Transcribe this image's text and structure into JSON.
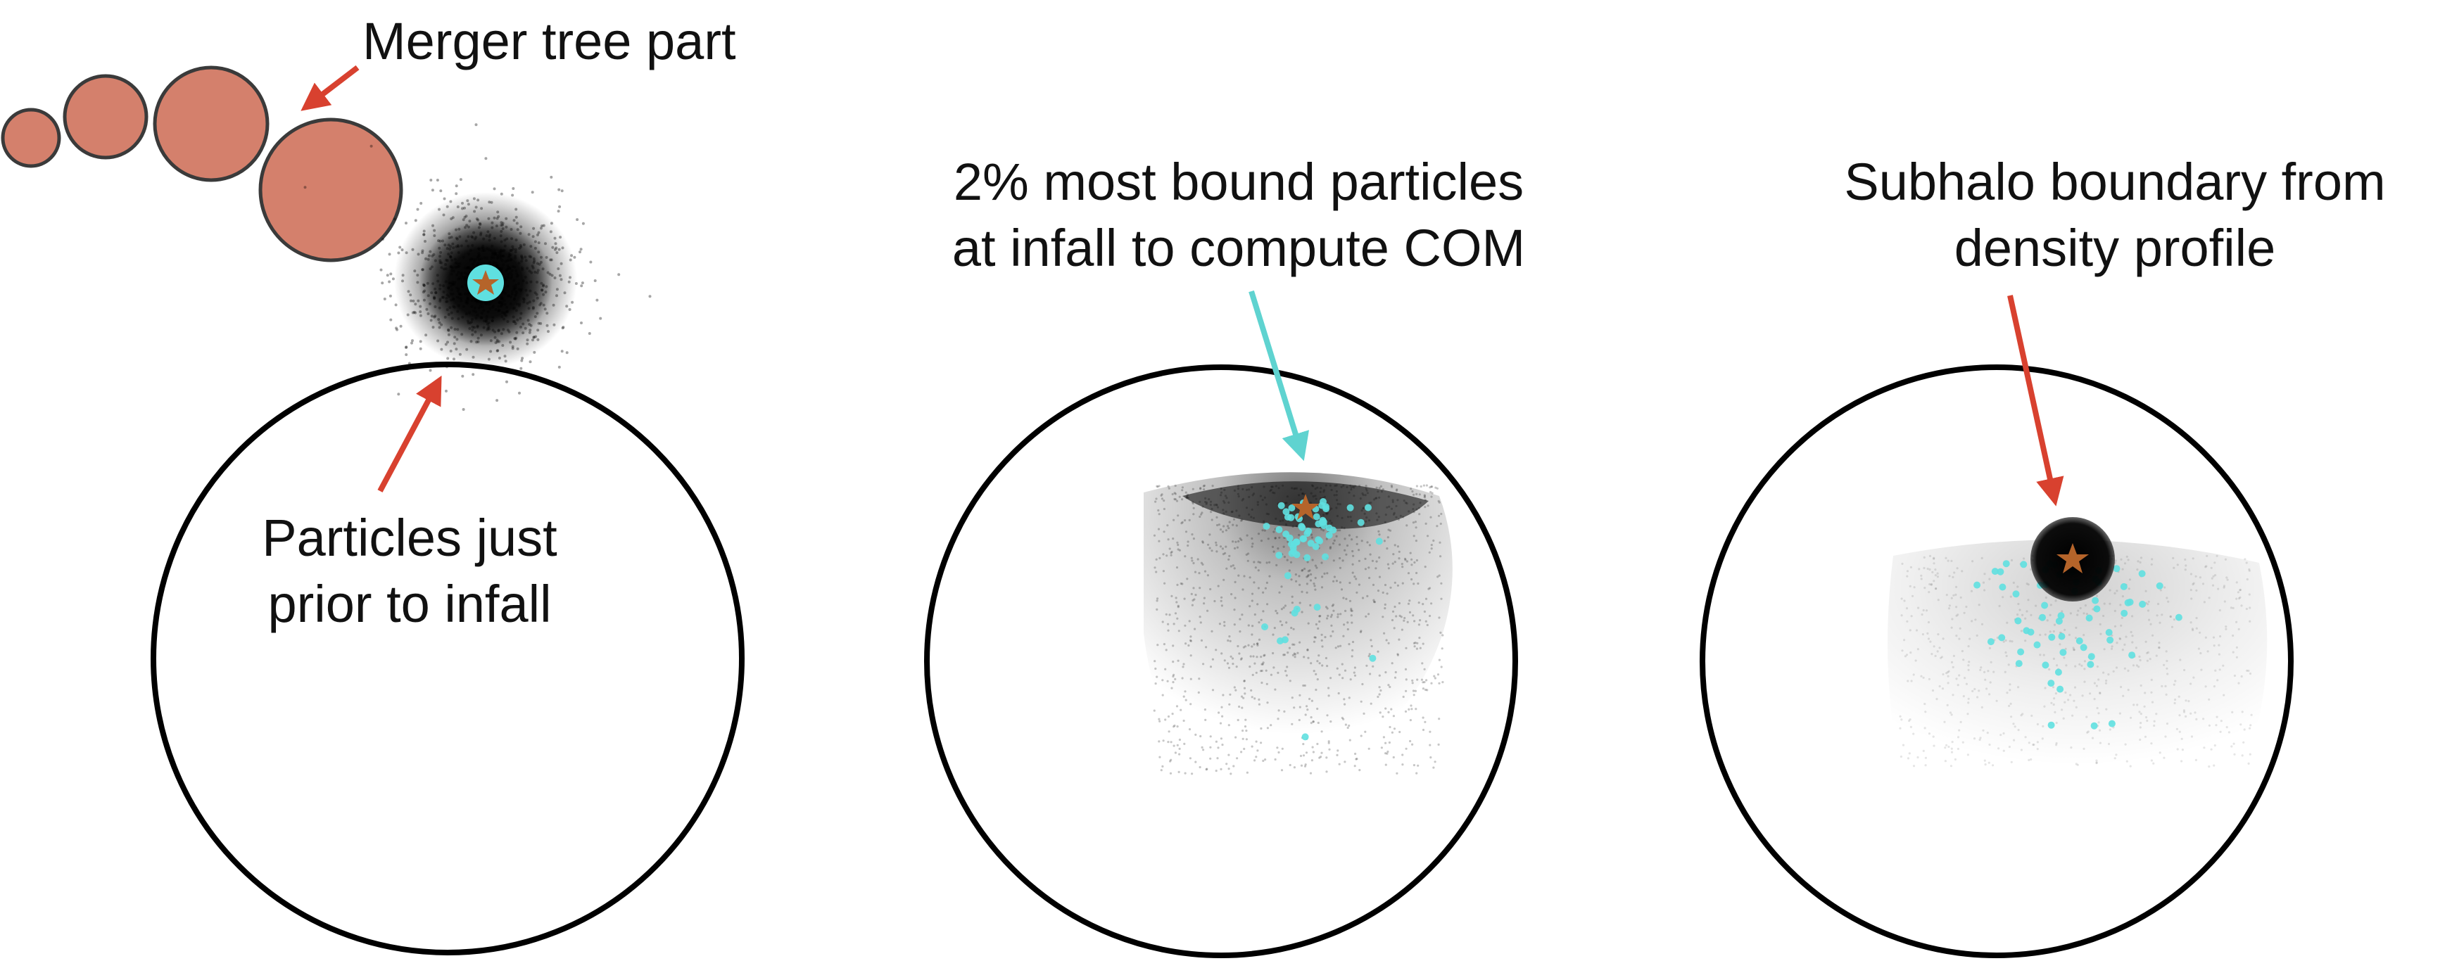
{
  "labels": {
    "merger_tree": "Merger tree part",
    "particles_line1": "Particles just",
    "particles_line2": "prior to infall",
    "bound_line1": "2% most bound particles",
    "bound_line2": "at infall to compute COM",
    "boundary_line1": "Subhalo boundary from",
    "boundary_line2": "density profile"
  },
  "colors": {
    "merger_node_fill": "#d4806c",
    "arrow_red": "#d8412f",
    "arrow_cyan": "#5fd3d0",
    "particles_dark": "#000000",
    "bound_particles": "#5fe0e0",
    "com_star": "#b5642a"
  },
  "panels": [
    {
      "name": "before-infall"
    },
    {
      "name": "after-infall-com"
    },
    {
      "name": "subhalo-boundary"
    }
  ]
}
